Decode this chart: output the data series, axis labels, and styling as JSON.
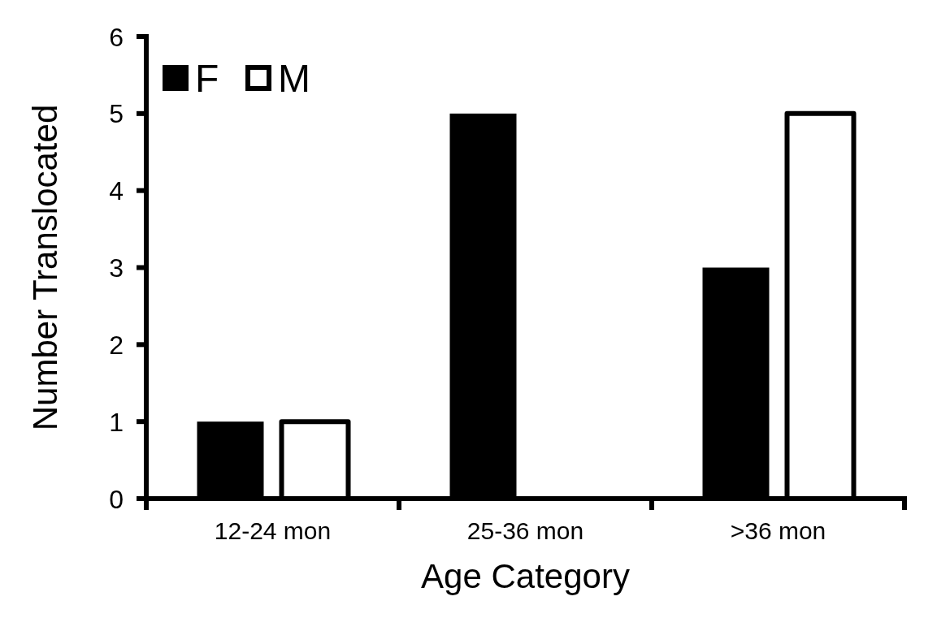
{
  "chart_data": {
    "type": "bar",
    "xlabel": "Age Category",
    "ylabel": "Number Translocated",
    "categories": [
      "12-24 mon",
      "25-36 mon",
      ">36 mon"
    ],
    "series": [
      {
        "name": "F",
        "color": "#000000",
        "values": [
          1,
          5,
          3
        ]
      },
      {
        "name": "M",
        "color": "#ffffff",
        "values": [
          1,
          0,
          5
        ]
      }
    ],
    "ylim": [
      0,
      6
    ],
    "yticks": [
      0,
      1,
      2,
      3,
      4,
      5,
      6
    ],
    "grid": false,
    "legend": "top left"
  }
}
